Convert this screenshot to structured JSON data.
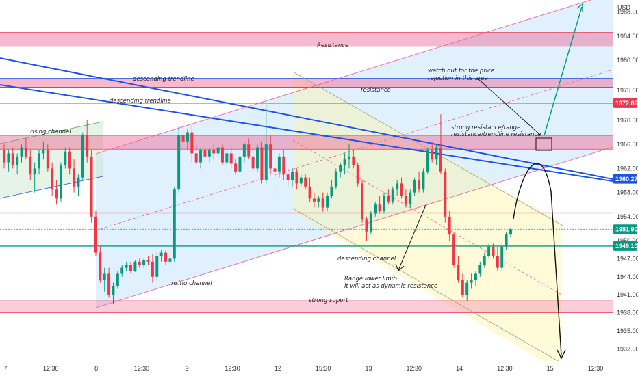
{
  "chart_data": {
    "type": "candlestick",
    "currency_label": "USD",
    "y_axis": {
      "min": 1930,
      "max": 1990,
      "ticks": [
        1932,
        1935,
        1938,
        1941,
        1944,
        1947,
        1950,
        1954,
        1958,
        1962,
        1966,
        1970,
        1975,
        1980,
        1984,
        1988
      ]
    },
    "x_axis": {
      "ticks": [
        "7",
        "12:30",
        "8",
        "12:30",
        "9",
        "12:30",
        "12",
        "15:30",
        "13",
        "12:30",
        "14",
        "12:30",
        "15",
        "12:30"
      ]
    },
    "price_tags": [
      {
        "value": "1972.86",
        "color": "#e53950"
      },
      {
        "value": "1960.27",
        "color": "#1e53e5"
      },
      {
        "value": "1951.90",
        "color": "#089981"
      },
      {
        "value": "1949.10",
        "color": "#089981"
      }
    ],
    "horizontal_levels": [
      {
        "price": 1972.86,
        "color": "#e53950"
      },
      {
        "price": 1954.6,
        "color": "#e53950"
      },
      {
        "price": 1949.1,
        "color": "#089981"
      },
      {
        "price": 1951.9,
        "color": "#089981"
      }
    ],
    "zones": [
      {
        "label": "Resistance",
        "from": 1982.3,
        "to": 1984.6,
        "color": "#f06292"
      },
      {
        "label": "resistance",
        "from": 1975.5,
        "to": 1977.0,
        "color": "#f06292"
      },
      {
        "label": "strong resistance/range resistance/trendline resistance",
        "from": 1965.2,
        "to": 1967.5,
        "color": "#f06292"
      },
      {
        "label": "strong supprt",
        "from": 1938.0,
        "to": 1940.0,
        "color": "#f48fb1"
      }
    ],
    "annotations": [
      {
        "text": "Resistance"
      },
      {
        "text": "descending trendline"
      },
      {
        "text": "descending trendline"
      },
      {
        "text": "resistance"
      },
      {
        "text": "watch out for the price"
      },
      {
        "text": "rejection in this area"
      },
      {
        "text": "rising channel"
      },
      {
        "text": "strong resistance/range"
      },
      {
        "text": "resistance/trendline resistance"
      },
      {
        "text": "descending channel"
      },
      {
        "text": "rising channel"
      },
      {
        "text": "Range lower limit-"
      },
      {
        "text": "it will act as dynamic resistance"
      },
      {
        "text": "strong supprt"
      }
    ],
    "candles": [
      [
        1965.0,
        1966.0,
        1962.0,
        1963.0
      ],
      [
        1963.0,
        1965.0,
        1961.5,
        1964.5
      ],
      [
        1964.5,
        1965.5,
        1962.0,
        1962.5
      ],
      [
        1962.5,
        1964.5,
        1961.0,
        1964.0
      ],
      [
        1964.0,
        1966.0,
        1963.0,
        1965.5
      ],
      [
        1965.5,
        1967.0,
        1963.5,
        1964.0
      ],
      [
        1964.0,
        1965.0,
        1960.0,
        1961.0
      ],
      [
        1961.0,
        1963.0,
        1958.0,
        1962.0
      ],
      [
        1962.0,
        1965.0,
        1961.0,
        1964.5
      ],
      [
        1964.5,
        1966.5,
        1963.5,
        1965.0
      ],
      [
        1965.0,
        1966.0,
        1961.5,
        1962.0
      ],
      [
        1962.0,
        1963.0,
        1957.5,
        1958.5
      ],
      [
        1958.5,
        1960.0,
        1956.0,
        1957.0
      ],
      [
        1957.0,
        1963.0,
        1956.5,
        1962.5
      ],
      [
        1962.5,
        1965.5,
        1962.0,
        1964.8
      ],
      [
        1964.8,
        1965.5,
        1961.0,
        1962.0
      ],
      [
        1962.0,
        1963.5,
        1958.0,
        1959.0
      ],
      [
        1959.0,
        1961.0,
        1957.5,
        1960.5
      ],
      [
        1960.5,
        1968.0,
        1960.0,
        1967.5
      ],
      [
        1967.5,
        1970.0,
        1963.0,
        1964.0
      ],
      [
        1964.0,
        1965.0,
        1953.0,
        1954.0
      ],
      [
        1954.0,
        1955.0,
        1947.5,
        1948.0
      ],
      [
        1948.0,
        1949.0,
        1943.0,
        1943.5
      ],
      [
        1943.5,
        1945.5,
        1941.5,
        1944.5
      ],
      [
        1944.5,
        1945.5,
        1940.5,
        1941.0
      ],
      [
        1941.0,
        1943.0,
        1939.5,
        1942.5
      ],
      [
        1942.5,
        1945.0,
        1942.0,
        1944.5
      ],
      [
        1944.5,
        1946.0,
        1944.0,
        1945.5
      ],
      [
        1945.5,
        1946.5,
        1945.0,
        1946.0
      ],
      [
        1946.0,
        1946.5,
        1944.5,
        1945.0
      ],
      [
        1945.0,
        1946.8,
        1944.8,
        1946.5
      ],
      [
        1946.5,
        1947.0,
        1945.5,
        1946.0
      ],
      [
        1946.0,
        1947.0,
        1945.5,
        1946.8
      ],
      [
        1946.8,
        1947.5,
        1946.0,
        1946.5
      ],
      [
        1946.5,
        1947.8,
        1943.0,
        1944.0
      ],
      [
        1944.0,
        1948.0,
        1943.5,
        1947.5
      ],
      [
        1947.5,
        1948.5,
        1946.5,
        1948.0
      ],
      [
        1948.0,
        1948.5,
        1946.0,
        1946.5
      ],
      [
        1946.5,
        1947.5,
        1946.0,
        1947.0
      ],
      [
        1947.0,
        1959.0,
        1946.5,
        1958.5
      ],
      [
        1958.5,
        1969.0,
        1958.0,
        1967.5
      ],
      [
        1967.5,
        1970.0,
        1966.0,
        1966.5
      ],
      [
        1966.5,
        1968.5,
        1965.0,
        1968.0
      ],
      [
        1968.0,
        1969.0,
        1963.0,
        1964.5
      ],
      [
        1964.5,
        1966.0,
        1962.5,
        1963.0
      ],
      [
        1963.0,
        1965.5,
        1962.0,
        1965.0
      ],
      [
        1965.0,
        1966.0,
        1963.0,
        1964.0
      ],
      [
        1964.0,
        1965.5,
        1963.0,
        1965.0
      ],
      [
        1965.0,
        1966.0,
        1963.5,
        1964.5
      ],
      [
        1964.5,
        1966.0,
        1963.5,
        1965.5
      ],
      [
        1965.5,
        1966.0,
        1962.5,
        1963.0
      ],
      [
        1963.0,
        1965.0,
        1962.5,
        1964.5
      ],
      [
        1964.5,
        1965.5,
        1962.0,
        1962.8
      ],
      [
        1962.8,
        1963.5,
        1961.0,
        1961.5
      ],
      [
        1961.5,
        1964.5,
        1961.0,
        1964.0
      ],
      [
        1964.0,
        1966.5,
        1963.0,
        1966.0
      ],
      [
        1966.0,
        1967.0,
        1963.5,
        1964.0
      ],
      [
        1964.0,
        1965.5,
        1961.5,
        1962.0
      ],
      [
        1962.0,
        1966.0,
        1961.5,
        1965.5
      ],
      [
        1965.5,
        1966.5,
        1959.5,
        1960.0
      ],
      [
        1960.0,
        1972.5,
        1959.5,
        1966.0
      ],
      [
        1966.0,
        1967.5,
        1961.0,
        1962.0
      ],
      [
        1962.0,
        1963.0,
        1957.0,
        1961.5
      ],
      [
        1961.5,
        1964.5,
        1960.5,
        1964.0
      ],
      [
        1964.0,
        1965.0,
        1960.0,
        1961.0
      ],
      [
        1961.0,
        1962.0,
        1959.0,
        1960.0
      ],
      [
        1960.0,
        1962.0,
        1959.0,
        1961.5
      ],
      [
        1961.5,
        1962.0,
        1958.5,
        1959.5
      ],
      [
        1959.5,
        1961.0,
        1959.0,
        1960.5
      ],
      [
        1960.5,
        1961.0,
        1958.5,
        1959.0
      ],
      [
        1959.0,
        1960.5,
        1956.5,
        1957.0
      ],
      [
        1957.0,
        1958.0,
        1955.5,
        1956.5
      ],
      [
        1956.5,
        1957.5,
        1955.5,
        1957.0
      ],
      [
        1957.0,
        1958.0,
        1954.8,
        1955.5
      ],
      [
        1955.5,
        1958.0,
        1955.0,
        1957.5
      ],
      [
        1957.5,
        1960.0,
        1957.0,
        1959.0
      ],
      [
        1959.0,
        1962.0,
        1958.5,
        1961.5
      ],
      [
        1961.5,
        1963.0,
        1960.5,
        1962.5
      ],
      [
        1962.5,
        1964.5,
        1961.0,
        1963.5
      ],
      [
        1963.5,
        1966.0,
        1962.0,
        1964.0
      ],
      [
        1964.0,
        1965.0,
        1962.0,
        1962.5
      ],
      [
        1962.5,
        1963.0,
        1959.0,
        1959.5
      ],
      [
        1959.5,
        1960.0,
        1953.0,
        1953.5
      ],
      [
        1953.5,
        1954.0,
        1950.0,
        1951.5
      ],
      [
        1951.5,
        1955.0,
        1951.0,
        1954.5
      ],
      [
        1954.5,
        1956.5,
        1954.0,
        1956.0
      ],
      [
        1956.0,
        1957.5,
        1954.5,
        1955.0
      ],
      [
        1955.0,
        1958.0,
        1954.5,
        1957.5
      ],
      [
        1957.5,
        1958.5,
        1956.0,
        1956.5
      ],
      [
        1956.5,
        1959.0,
        1956.0,
        1958.5
      ],
      [
        1958.5,
        1960.0,
        1957.5,
        1959.5
      ],
      [
        1959.5,
        1960.5,
        1957.0,
        1957.5
      ],
      [
        1957.5,
        1958.5,
        1955.5,
        1956.0
      ],
      [
        1956.0,
        1958.5,
        1955.5,
        1958.0
      ],
      [
        1958.0,
        1960.5,
        1957.5,
        1960.0
      ],
      [
        1960.0,
        1961.5,
        1958.0,
        1958.5
      ],
      [
        1958.5,
        1962.0,
        1958.0,
        1961.5
      ],
      [
        1961.5,
        1965.5,
        1961.0,
        1965.0
      ],
      [
        1965.0,
        1966.5,
        1963.0,
        1963.5
      ],
      [
        1963.5,
        1966.0,
        1962.5,
        1965.5
      ],
      [
        1965.5,
        1971.0,
        1961.0,
        1961.5
      ],
      [
        1961.5,
        1962.0,
        1953.0,
        1954.0
      ],
      [
        1954.0,
        1955.0,
        1950.0,
        1951.0
      ],
      [
        1951.0,
        1951.5,
        1945.5,
        1946.0
      ],
      [
        1946.0,
        1947.5,
        1943.0,
        1943.5
      ],
      [
        1943.5,
        1944.5,
        1940.5,
        1941.0
      ],
      [
        1941.0,
        1943.5,
        1940.0,
        1943.0
      ],
      [
        1943.0,
        1944.5,
        1942.0,
        1943.5
      ],
      [
        1943.5,
        1945.0,
        1942.5,
        1944.5
      ],
      [
        1944.5,
        1946.5,
        1944.0,
        1946.0
      ],
      [
        1946.0,
        1948.0,
        1945.5,
        1947.5
      ],
      [
        1947.5,
        1949.5,
        1947.0,
        1949.0
      ],
      [
        1949.0,
        1949.5,
        1947.0,
        1947.5
      ],
      [
        1947.5,
        1949.0,
        1945.0,
        1945.5
      ],
      [
        1945.5,
        1949.5,
        1945.0,
        1949.0
      ],
      [
        1949.0,
        1951.5,
        1948.5,
        1951.0
      ],
      [
        1951.0,
        1952.2,
        1950.5,
        1951.9
      ]
    ]
  }
}
